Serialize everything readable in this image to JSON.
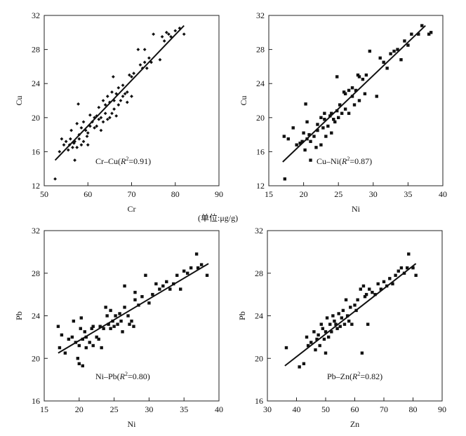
{
  "unit_note": "(单位:μg/g)",
  "chart_data": [
    {
      "type": "scatter",
      "xlabel": "Cr",
      "ylabel": "Cu",
      "xlim": [
        50,
        90
      ],
      "ylim": [
        12,
        32
      ],
      "xticks": [
        50,
        60,
        70,
        80,
        90
      ],
      "yticks": [
        12,
        16,
        20,
        24,
        28,
        32
      ],
      "marker": "diamond",
      "annotation_parts": [
        "Cr–Cu(",
        "R",
        "2",
        "=0.91)"
      ],
      "fit_line": [
        [
          52.5,
          15.0
        ],
        [
          82.0,
          30.8
        ]
      ],
      "points": [
        [
          52.5,
          12.8
        ],
        [
          53.5,
          16.0
        ],
        [
          54.0,
          17.5
        ],
        [
          54.5,
          16.8
        ],
        [
          55.0,
          17.2
        ],
        [
          55.5,
          16.2
        ],
        [
          55.8,
          16.8
        ],
        [
          56.0,
          17.5
        ],
        [
          56.2,
          18.5
        ],
        [
          56.5,
          16.5
        ],
        [
          56.8,
          17.0
        ],
        [
          57.0,
          17.2
        ],
        [
          57.0,
          15.0
        ],
        [
          57.5,
          19.3
        ],
        [
          57.5,
          16.5
        ],
        [
          57.8,
          21.6
        ],
        [
          58.0,
          18.0
        ],
        [
          58.0,
          17.5
        ],
        [
          58.5,
          18.8
        ],
        [
          58.5,
          16.8
        ],
        [
          59.0,
          19.5
        ],
        [
          59.0,
          17.2
        ],
        [
          59.5,
          18.5
        ],
        [
          59.8,
          17.8
        ],
        [
          60.0,
          18.2
        ],
        [
          60.0,
          16.8
        ],
        [
          60.5,
          20.3
        ],
        [
          60.5,
          19.0
        ],
        [
          61.0,
          19.5
        ],
        [
          61.5,
          20.0
        ],
        [
          61.5,
          18.8
        ],
        [
          62.0,
          20.2
        ],
        [
          62.0,
          19.0
        ],
        [
          62.5,
          19.8
        ],
        [
          62.5,
          21.2
        ],
        [
          63.0,
          20.0
        ],
        [
          63.0,
          18.5
        ],
        [
          63.5,
          19.5
        ],
        [
          63.5,
          22.0
        ],
        [
          64.0,
          20.5
        ],
        [
          64.0,
          21.5
        ],
        [
          64.5,
          19.8
        ],
        [
          64.5,
          22.5
        ],
        [
          65.0,
          20.0
        ],
        [
          65.0,
          21.8
        ],
        [
          65.5,
          23.0
        ],
        [
          65.5,
          20.5
        ],
        [
          65.8,
          24.8
        ],
        [
          66.0,
          22.0
        ],
        [
          66.0,
          21.0
        ],
        [
          66.5,
          22.8
        ],
        [
          66.5,
          20.2
        ],
        [
          67.0,
          23.5
        ],
        [
          67.0,
          21.5
        ],
        [
          67.5,
          22.0
        ],
        [
          68.0,
          23.8
        ],
        [
          68.0,
          22.5
        ],
        [
          68.5,
          22.8
        ],
        [
          69.0,
          23.0
        ],
        [
          69.0,
          21.8
        ],
        [
          69.5,
          25.0
        ],
        [
          70.0,
          24.8
        ],
        [
          70.0,
          22.5
        ],
        [
          70.5,
          25.2
        ],
        [
          71.5,
          28.0
        ],
        [
          72.0,
          26.2
        ],
        [
          72.5,
          25.8
        ],
        [
          73.0,
          26.5
        ],
        [
          73.0,
          28.0
        ],
        [
          73.5,
          25.8
        ],
        [
          74.0,
          27.0
        ],
        [
          74.5,
          26.5
        ],
        [
          75.0,
          29.8
        ],
        [
          76.5,
          26.8
        ],
        [
          77.0,
          29.5
        ],
        [
          77.5,
          29.0
        ],
        [
          78.0,
          30.0
        ],
        [
          78.5,
          29.8
        ],
        [
          79.0,
          29.5
        ],
        [
          80.0,
          30.2
        ],
        [
          81.0,
          30.5
        ],
        [
          82.0,
          29.8
        ]
      ]
    },
    {
      "type": "scatter",
      "xlabel": "Ni",
      "ylabel": "Cu",
      "xlim": [
        15,
        40
      ],
      "ylim": [
        12,
        32
      ],
      "xticks": [
        15,
        20,
        25,
        30,
        35,
        40
      ],
      "yticks": [
        12,
        16,
        20,
        24,
        28,
        32
      ],
      "marker": "square",
      "annotation_parts": [
        "Cu–Ni(",
        "R",
        "2",
        "=0.87)"
      ],
      "fit_line": [
        [
          17.0,
          14.8
        ],
        [
          37.5,
          30.8
        ]
      ],
      "points": [
        [
          17.2,
          17.8
        ],
        [
          17.3,
          12.8
        ],
        [
          17.8,
          17.5
        ],
        [
          18.5,
          18.8
        ],
        [
          19.0,
          16.8
        ],
        [
          19.5,
          17.0
        ],
        [
          19.8,
          17.2
        ],
        [
          20.0,
          18.2
        ],
        [
          20.2,
          16.2
        ],
        [
          20.3,
          21.6
        ],
        [
          20.5,
          19.5
        ],
        [
          20.5,
          17.5
        ],
        [
          20.8,
          18.0
        ],
        [
          21.0,
          17.2
        ],
        [
          21.0,
          15.0
        ],
        [
          21.5,
          17.8
        ],
        [
          21.8,
          16.5
        ],
        [
          22.0,
          19.2
        ],
        [
          22.0,
          18.5
        ],
        [
          22.5,
          20.0
        ],
        [
          22.5,
          16.8
        ],
        [
          22.8,
          18.8
        ],
        [
          23.0,
          19.8
        ],
        [
          23.0,
          20.5
        ],
        [
          23.2,
          17.8
        ],
        [
          23.5,
          19.0
        ],
        [
          23.8,
          20.2
        ],
        [
          24.0,
          18.2
        ],
        [
          24.0,
          20.5
        ],
        [
          24.3,
          19.8
        ],
        [
          24.5,
          19.5
        ],
        [
          24.8,
          24.8
        ],
        [
          24.8,
          20.8
        ],
        [
          25.0,
          20.0
        ],
        [
          25.2,
          21.5
        ],
        [
          25.5,
          20.5
        ],
        [
          25.8,
          23.0
        ],
        [
          26.0,
          21.0
        ],
        [
          26.0,
          22.8
        ],
        [
          26.5,
          23.2
        ],
        [
          26.5,
          20.5
        ],
        [
          27.0,
          23.5
        ],
        [
          27.0,
          22.5
        ],
        [
          27.3,
          21.5
        ],
        [
          27.5,
          23.2
        ],
        [
          27.8,
          25.0
        ],
        [
          28.0,
          24.8
        ],
        [
          28.0,
          22.0
        ],
        [
          28.5,
          24.5
        ],
        [
          28.8,
          22.8
        ],
        [
          29.0,
          25.0
        ],
        [
          29.5,
          27.8
        ],
        [
          30.5,
          22.5
        ],
        [
          31.0,
          27.0
        ],
        [
          31.5,
          26.5
        ],
        [
          32.0,
          25.8
        ],
        [
          32.5,
          27.5
        ],
        [
          33.0,
          27.8
        ],
        [
          33.5,
          28.0
        ],
        [
          34.0,
          26.8
        ],
        [
          34.5,
          29.0
        ],
        [
          35.0,
          28.5
        ],
        [
          35.5,
          29.8
        ],
        [
          36.5,
          29.8
        ],
        [
          37.0,
          30.8
        ],
        [
          38.0,
          29.8
        ],
        [
          38.3,
          30.0
        ]
      ]
    },
    {
      "type": "scatter",
      "xlabel": "Ni",
      "ylabel": "Pb",
      "xlim": [
        15,
        40
      ],
      "ylim": [
        16,
        32
      ],
      "xticks": [
        15,
        20,
        25,
        30,
        35,
        40
      ],
      "yticks": [
        16,
        20,
        24,
        28,
        32
      ],
      "marker": "square",
      "annotation_parts": [
        "Ni–Pb(",
        "R",
        "2",
        "=0.80)"
      ],
      "fit_line": [
        [
          17.0,
          20.5
        ],
        [
          38.5,
          28.9
        ]
      ],
      "points": [
        [
          17.0,
          23.0
        ],
        [
          17.2,
          21.0
        ],
        [
          17.5,
          22.2
        ],
        [
          18.0,
          20.5
        ],
        [
          18.5,
          21.8
        ],
        [
          19.0,
          22.0
        ],
        [
          19.2,
          23.5
        ],
        [
          19.5,
          21.5
        ],
        [
          19.8,
          20.0
        ],
        [
          20.0,
          21.2
        ],
        [
          20.0,
          19.5
        ],
        [
          20.2,
          22.8
        ],
        [
          20.3,
          23.8
        ],
        [
          20.5,
          21.8
        ],
        [
          20.5,
          19.3
        ],
        [
          20.8,
          22.5
        ],
        [
          21.0,
          21.0
        ],
        [
          21.0,
          22.0
        ],
        [
          21.5,
          21.5
        ],
        [
          21.8,
          22.8
        ],
        [
          22.0,
          23.0
        ],
        [
          22.0,
          21.2
        ],
        [
          22.5,
          22.0
        ],
        [
          22.8,
          21.8
        ],
        [
          23.0,
          23.0
        ],
        [
          23.2,
          21.0
        ],
        [
          23.5,
          22.8
        ],
        [
          23.8,
          24.8
        ],
        [
          24.0,
          24.0
        ],
        [
          24.2,
          23.2
        ],
        [
          24.5,
          22.8
        ],
        [
          24.5,
          24.5
        ],
        [
          24.8,
          23.5
        ],
        [
          25.0,
          23.0
        ],
        [
          25.2,
          24.0
        ],
        [
          25.5,
          23.2
        ],
        [
          25.8,
          24.2
        ],
        [
          26.0,
          23.5
        ],
        [
          26.2,
          22.5
        ],
        [
          26.5,
          24.8
        ],
        [
          26.5,
          26.8
        ],
        [
          27.0,
          24.0
        ],
        [
          27.2,
          23.2
        ],
        [
          27.5,
          23.5
        ],
        [
          27.8,
          23.0
        ],
        [
          28.0,
          25.5
        ],
        [
          28.0,
          26.2
        ],
        [
          28.5,
          25.0
        ],
        [
          29.0,
          25.8
        ],
        [
          29.5,
          27.8
        ],
        [
          30.0,
          25.2
        ],
        [
          30.5,
          26.0
        ],
        [
          31.0,
          27.0
        ],
        [
          31.5,
          26.5
        ],
        [
          32.0,
          26.8
        ],
        [
          32.5,
          27.2
        ],
        [
          33.0,
          26.5
        ],
        [
          33.5,
          27.0
        ],
        [
          34.0,
          27.8
        ],
        [
          34.5,
          26.5
        ],
        [
          35.0,
          28.2
        ],
        [
          35.5,
          28.0
        ],
        [
          36.0,
          28.5
        ],
        [
          36.8,
          29.8
        ],
        [
          37.0,
          28.5
        ],
        [
          37.5,
          28.8
        ],
        [
          38.3,
          27.8
        ]
      ]
    },
    {
      "type": "scatter",
      "xlabel": "Zn",
      "ylabel": "Pb",
      "xlim": [
        30,
        90
      ],
      "ylim": [
        16,
        32
      ],
      "xticks": [
        30,
        40,
        50,
        60,
        70,
        80,
        90
      ],
      "yticks": [
        16,
        20,
        24,
        28,
        32
      ],
      "marker": "square",
      "annotation_parts": [
        "Pb–Zn(",
        "R",
        "2",
        "=0.82)"
      ],
      "fit_line": [
        [
          36.0,
          19.3
        ],
        [
          81.0,
          28.9
        ]
      ],
      "points": [
        [
          36.5,
          21.0
        ],
        [
          41.0,
          19.2
        ],
        [
          42.5,
          19.5
        ],
        [
          43.5,
          22.0
        ],
        [
          44.0,
          21.2
        ],
        [
          45.0,
          21.5
        ],
        [
          46.0,
          22.5
        ],
        [
          46.5,
          20.8
        ],
        [
          47.0,
          21.8
        ],
        [
          47.5,
          22.2
        ],
        [
          48.0,
          21.2
        ],
        [
          48.5,
          23.2
        ],
        [
          49.0,
          22.8
        ],
        [
          49.5,
          21.8
        ],
        [
          50.0,
          22.5
        ],
        [
          50.0,
          20.5
        ],
        [
          50.5,
          23.8
        ],
        [
          51.0,
          22.0
        ],
        [
          51.5,
          23.2
        ],
        [
          52.0,
          22.5
        ],
        [
          52.5,
          24.0
        ],
        [
          53.0,
          23.5
        ],
        [
          53.5,
          23.2
        ],
        [
          54.0,
          22.8
        ],
        [
          54.5,
          24.2
        ],
        [
          55.0,
          23.0
        ],
        [
          55.5,
          23.8
        ],
        [
          56.0,
          24.5
        ],
        [
          56.5,
          23.2
        ],
        [
          57.0,
          25.5
        ],
        [
          57.5,
          24.0
        ],
        [
          58.0,
          23.5
        ],
        [
          58.5,
          24.8
        ],
        [
          59.0,
          23.2
        ],
        [
          60.0,
          25.0
        ],
        [
          60.5,
          24.5
        ],
        [
          61.0,
          25.5
        ],
        [
          62.0,
          26.5
        ],
        [
          62.5,
          20.5
        ],
        [
          63.0,
          26.8
        ],
        [
          63.5,
          25.8
        ],
        [
          64.0,
          26.0
        ],
        [
          64.5,
          23.2
        ],
        [
          65.0,
          26.5
        ],
        [
          66.0,
          26.2
        ],
        [
          67.0,
          26.0
        ],
        [
          68.0,
          27.0
        ],
        [
          69.0,
          26.5
        ],
        [
          70.0,
          27.2
        ],
        [
          71.0,
          26.8
        ],
        [
          72.0,
          27.5
        ],
        [
          73.0,
          27.0
        ],
        [
          74.0,
          27.8
        ],
        [
          75.0,
          28.2
        ],
        [
          76.0,
          28.5
        ],
        [
          77.0,
          28.0
        ],
        [
          78.0,
          28.5
        ],
        [
          78.5,
          29.8
        ],
        [
          80.0,
          28.5
        ],
        [
          81.0,
          27.8
        ]
      ]
    }
  ]
}
